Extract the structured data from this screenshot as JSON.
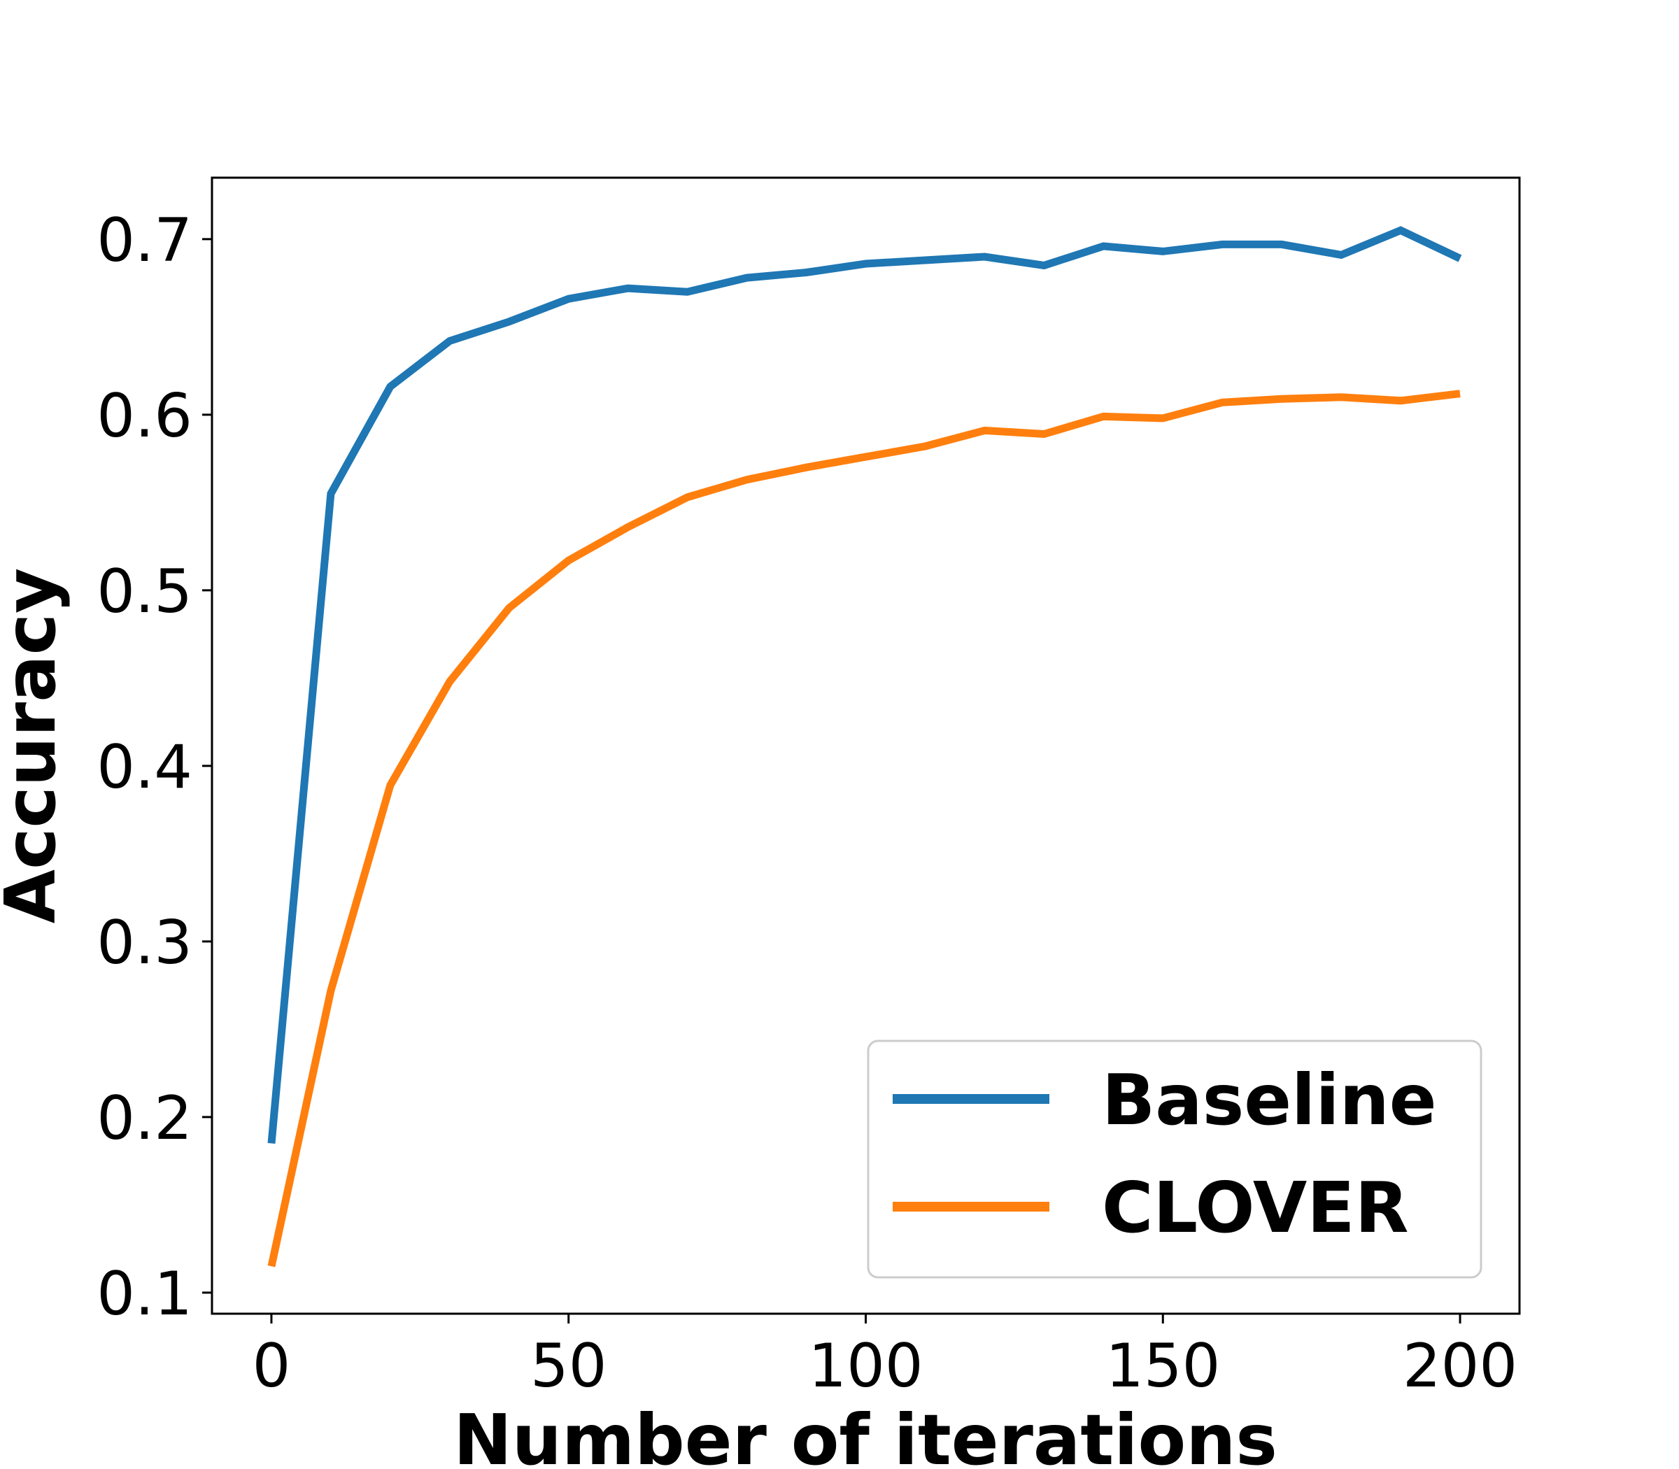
{
  "chart_data": {
    "type": "line",
    "xlabel": "Number of iterations",
    "ylabel": "Accuracy",
    "xlim": [
      -10,
      210
    ],
    "ylim": [
      0.088,
      0.735
    ],
    "xticks": [
      0,
      50,
      100,
      150,
      200
    ],
    "xtick_labels": [
      "0",
      "50",
      "100",
      "150",
      "200"
    ],
    "yticks": [
      0.1,
      0.2,
      0.3,
      0.4,
      0.5,
      0.6,
      0.7
    ],
    "ytick_labels": [
      "0.1",
      "0.2",
      "0.3",
      "0.4",
      "0.5",
      "0.6",
      "0.7"
    ],
    "grid": false,
    "legend_position": "bottom-right",
    "x": [
      0,
      10,
      20,
      30,
      40,
      50,
      60,
      70,
      80,
      90,
      100,
      110,
      120,
      130,
      140,
      150,
      160,
      170,
      180,
      190,
      200
    ],
    "series": [
      {
        "name": "Baseline",
        "color": "#1f77b4",
        "values": [
          0.185,
          0.555,
          0.616,
          0.642,
          0.653,
          0.666,
          0.672,
          0.67,
          0.678,
          0.681,
          0.686,
          0.688,
          0.69,
          0.685,
          0.696,
          0.693,
          0.697,
          0.697,
          0.691,
          0.705,
          0.689
        ]
      },
      {
        "name": "CLOVER",
        "color": "#ff7f0e",
        "values": [
          0.115,
          0.272,
          0.389,
          0.448,
          0.49,
          0.517,
          0.536,
          0.553,
          0.563,
          0.57,
          0.576,
          0.582,
          0.591,
          0.589,
          0.599,
          0.598,
          0.607,
          0.609,
          0.61,
          0.608,
          0.612
        ]
      }
    ]
  }
}
